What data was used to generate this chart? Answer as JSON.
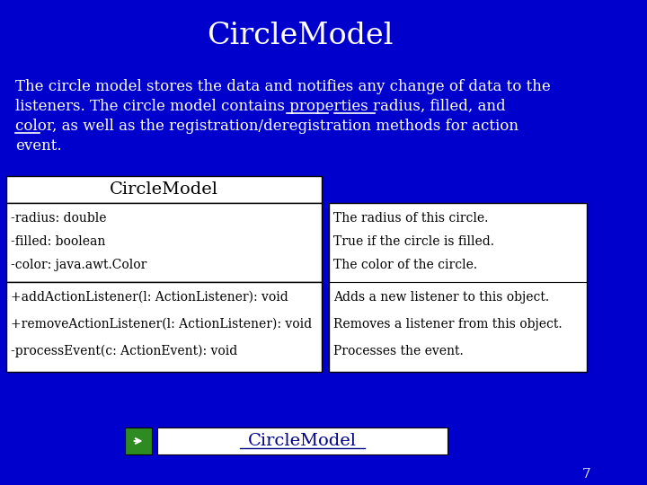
{
  "title": "CircleModel",
  "title_color": "#FFFFFF",
  "bg_color": "#0000CC",
  "body_text_color": "#FFFFFF",
  "body_lines": [
    "The circle model stores the data and notifies any change of data to the",
    "listeners. The circle model contains properties radius, filled, and",
    "color, as well as the registration/deregistration methods for action",
    "event."
  ],
  "uml_header": "CircleModel",
  "uml_fields": [
    "-radius: double",
    "-filled: boolean",
    "-color: java.awt.Color"
  ],
  "uml_methods": [
    "+addActionListener(l: ActionListener): void",
    "+removeActionListener(l: ActionListener): void",
    "-processEvent(c: ActionEvent): void"
  ],
  "uml_field_desc": [
    "The radius of this circle.",
    "True if the circle is filled.",
    "The color of the circle."
  ],
  "uml_method_desc": [
    "Adds a new listener to this object.",
    "Removes a listener from this object.",
    "Processes the event."
  ],
  "footer_label": "CircleModel",
  "footer_text_color": "#00008B",
  "page_number": "7",
  "uml_bg": "#FFFFFF",
  "uml_text_color": "#000000",
  "green_square_color": "#2E8B22"
}
